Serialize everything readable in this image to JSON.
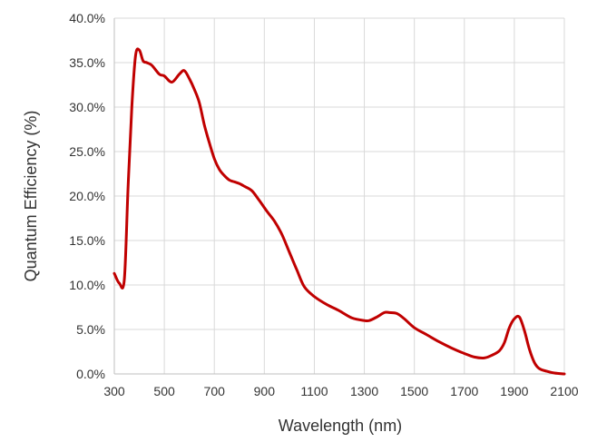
{
  "chart_data": {
    "type": "line",
    "title": "",
    "xlabel": "Wavelength (nm)",
    "ylabel": "Quantum Efficiency (%)",
    "xlim": [
      300,
      2100
    ],
    "ylim": [
      0,
      40
    ],
    "x_ticks": [
      "300",
      "500",
      "700",
      "900",
      "1100",
      "1300",
      "1500",
      "1700",
      "1900",
      "2100"
    ],
    "y_ticks": [
      "0.0%",
      "5.0%",
      "10.0%",
      "15.0%",
      "20.0%",
      "25.0%",
      "30.0%",
      "35.0%",
      "40.0%"
    ],
    "grid": true,
    "legend": "none",
    "series": [
      {
        "color": "#c00000",
        "x": [
          300,
          320,
          340,
          355,
          370,
          385,
          400,
          415,
          430,
          450,
          480,
          500,
          530,
          560,
          580,
          600,
          620,
          640,
          660,
          680,
          700,
          720,
          740,
          760,
          780,
          800,
          820,
          850,
          880,
          910,
          940,
          970,
          1000,
          1030,
          1060,
          1100,
          1150,
          1200,
          1250,
          1300,
          1320,
          1350,
          1380,
          1400,
          1430,
          1460,
          1500,
          1550,
          1600,
          1650,
          1700,
          1740,
          1780,
          1810,
          1840,
          1860,
          1880,
          1900,
          1920,
          1940,
          1960,
          1980,
          2000,
          2030,
          2060,
          2100
        ],
        "y": [
          11.3,
          10.2,
          10.6,
          21.0,
          30.0,
          35.8,
          36.4,
          35.2,
          35.0,
          34.7,
          33.7,
          33.5,
          32.8,
          33.7,
          34.1,
          33.2,
          32.0,
          30.5,
          28.0,
          26.0,
          24.2,
          23.0,
          22.3,
          21.8,
          21.6,
          21.4,
          21.1,
          20.6,
          19.5,
          18.3,
          17.2,
          15.7,
          13.7,
          11.7,
          9.8,
          8.7,
          7.8,
          7.1,
          6.3,
          6.0,
          6.0,
          6.4,
          6.9,
          6.9,
          6.8,
          6.2,
          5.2,
          4.4,
          3.6,
          2.9,
          2.3,
          1.9,
          1.8,
          2.1,
          2.6,
          3.5,
          5.2,
          6.2,
          6.4,
          4.9,
          2.8,
          1.3,
          0.6,
          0.3,
          0.1,
          0.0
        ]
      }
    ]
  }
}
